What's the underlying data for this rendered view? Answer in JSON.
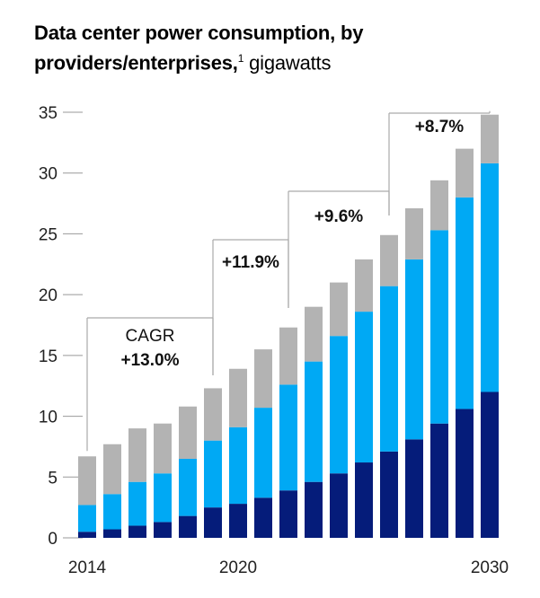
{
  "chart_data": {
    "type": "bar",
    "stacked": true,
    "title": "Data center power consumption, by providers/enterprises,",
    "title_footnote": "1",
    "title_unit": "gigawatts",
    "xlabel": "",
    "ylabel": "",
    "ylim": [
      0,
      35
    ],
    "yticks": [
      0,
      5,
      10,
      15,
      20,
      25,
      30,
      35
    ],
    "categories": [
      "2014",
      "2015",
      "2016",
      "2017",
      "2018",
      "2019",
      "2020",
      "2021",
      "2022",
      "2023",
      "2024",
      "2025",
      "2026",
      "2027",
      "2028",
      "2029",
      "2030"
    ],
    "xtick_labels": [
      "2014",
      "2020",
      "2030"
    ],
    "grid": false,
    "series": [
      {
        "color": "#051c7a",
        "values": [
          0.5,
          0.7,
          1.0,
          1.3,
          1.8,
          2.5,
          2.8,
          3.3,
          3.9,
          4.6,
          5.3,
          6.2,
          7.1,
          8.1,
          9.4,
          10.6,
          12.0
        ]
      },
      {
        "color": "#00a9f4",
        "values": [
          2.2,
          2.9,
          3.6,
          4.0,
          4.7,
          5.5,
          6.3,
          7.4,
          8.7,
          9.9,
          11.3,
          12.4,
          13.6,
          14.8,
          15.9,
          17.4,
          18.8
        ]
      },
      {
        "color": "#b3b3b3",
        "values": [
          4.0,
          4.1,
          4.4,
          4.1,
          4.3,
          4.3,
          4.8,
          4.8,
          4.7,
          4.5,
          4.4,
          4.3,
          4.2,
          4.2,
          4.1,
          4.0,
          4.0
        ]
      }
    ],
    "totals": [
      6.7,
      7.7,
      9.0,
      9.4,
      10.8,
      12.3,
      13.9,
      15.5,
      17.3,
      19.0,
      21.0,
      22.9,
      24.9,
      27.1,
      29.4,
      32.0,
      34.8
    ],
    "annotations": {
      "cagr_label": "CAGR",
      "periods": [
        {
          "from": "2014",
          "to": "2019",
          "value": "+13.0%"
        },
        {
          "from": "2019",
          "to": "2022",
          "value": "+11.9%"
        },
        {
          "from": "2022",
          "to": "2026",
          "value": "+9.6%"
        },
        {
          "from": "2026",
          "to": "2030",
          "value": "+8.7%"
        }
      ]
    }
  }
}
